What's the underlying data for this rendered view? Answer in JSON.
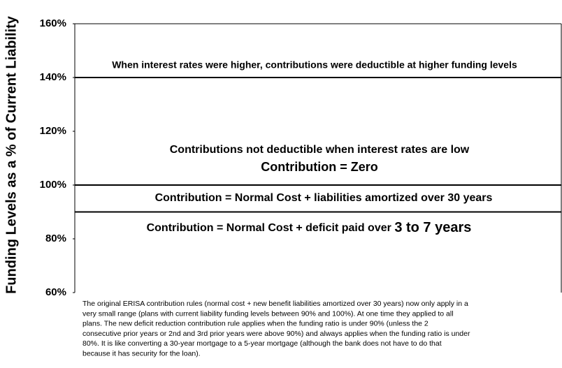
{
  "chart_data": {
    "type": "hline",
    "y_label": "Funding Levels as a % of Current Liability",
    "ylim": [
      60,
      160
    ],
    "yticks": [
      {
        "value": 60,
        "label": "60%"
      },
      {
        "value": 80,
        "label": "80%"
      },
      {
        "value": 100,
        "label": "100%"
      },
      {
        "value": 120,
        "label": "120%"
      },
      {
        "value": 140,
        "label": "140%"
      },
      {
        "value": 160,
        "label": "160%"
      }
    ],
    "values": [
      140,
      100,
      90
    ],
    "color": "#000000",
    "annotations": [
      "When interest rates were higher, contributions were deductible at higher funding levels",
      "Contributions not deductible when interest rates are low",
      "Contribution = Zero",
      "Contribution = Normal Cost + liabilities amortized over 30 years",
      "Contribution = Normal Cost + deficit paid over",
      "3 to 7 years"
    ],
    "caption": [
      "The original ERISA contribution rules (normal cost + new benefit liabilities amortized over 30 years) now only apply in a",
      "very small range (plans with current liability funding levels between 90% and 100%).  At one time they applied to all",
      "plans.  The new deficit reduction contribution rule applies when the funding ratio is under 90% (unless the 2",
      "consecutive prior years or 2nd and 3rd prior years were above 90%) and always applies when the funding ratio is under",
      "80%.  It is like converting a 30-year mortgage to a 5-year mortgage (although the bank does not have to do that",
      "because it has security for the loan)."
    ]
  }
}
